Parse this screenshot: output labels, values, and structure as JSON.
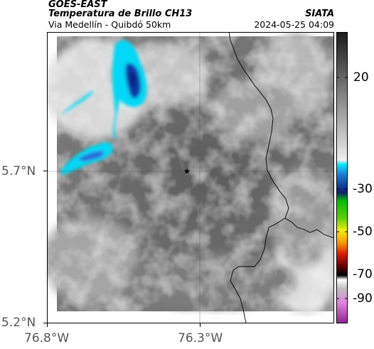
{
  "header": {
    "satellite": "GOES-EAST",
    "product": "Temperatura de Brillo CH13",
    "agency": "SIATA",
    "region": "Via Medellín - Quibdó 50km",
    "datetime": "2024-05-25 04:09"
  },
  "axes": {
    "y_ticks": [
      {
        "label": "5.7°N",
        "value": 5.7
      },
      {
        "label": "5.2°N",
        "value": 5.2
      }
    ],
    "x_ticks": [
      {
        "label": "76.8°W",
        "value": -76.8
      },
      {
        "label": "76.3°W",
        "value": -76.3
      }
    ]
  },
  "colorbar": {
    "ticks": [
      {
        "label": "20",
        "value": 20
      },
      {
        "label": "-30",
        "value": -30
      },
      {
        "label": "-50",
        "value": -50
      },
      {
        "label": "-70",
        "value": -70
      },
      {
        "label": "-90",
        "value": -90
      }
    ],
    "colors": {
      "warm_top": "#222222",
      "warm_mid": "#8a8a8a",
      "cold_cyan": "#00e0ff",
      "cold_blue": "#0a2a9a",
      "green": "#00b400",
      "yellow": "#e8e800",
      "orange": "#ff7a00",
      "red": "#c80000",
      "black": "#000000",
      "magenta": "#b03cb0"
    }
  },
  "marker": {
    "symbol": "★"
  }
}
